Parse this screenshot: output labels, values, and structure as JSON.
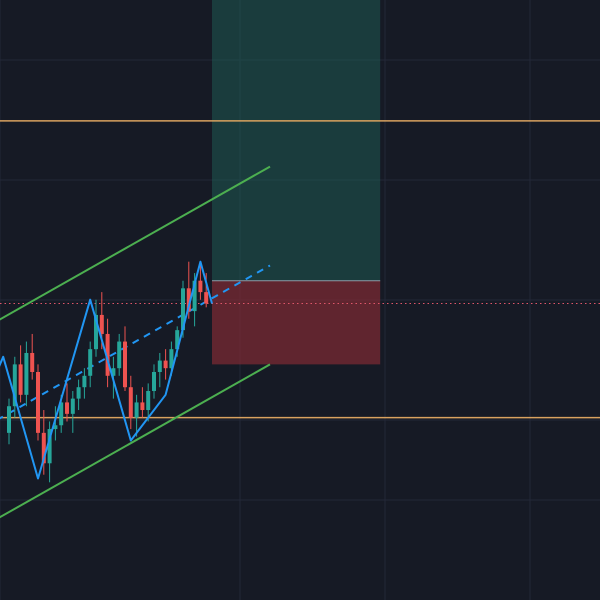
{
  "chart_data": {
    "type": "candlestick",
    "title": "",
    "xlabel": "",
    "ylabel": "",
    "grid": true,
    "price_scale_visible": false,
    "time_scale_visible": false,
    "colors": {
      "background": "#161a25",
      "grid": "#232838",
      "up_candle": "#26a69a",
      "down_candle": "#ef5350",
      "channel": "#4caf50",
      "zigzag": "#2196f3",
      "horizontal_levels": "#d9a25f",
      "current_price_line": "#e0566a",
      "target_zone": "#1f5a52",
      "stop_zone": "#7a2a33"
    },
    "ylim": [
      0,
      100
    ],
    "candles": [
      {
        "o": 43.0,
        "h": 47.5,
        "l": 41.5,
        "c": 46.5
      },
      {
        "o": 46.5,
        "h": 53.0,
        "l": 45.0,
        "c": 52.0
      },
      {
        "o": 52.0,
        "h": 54.5,
        "l": 47.0,
        "c": 48.0
      },
      {
        "o": 48.0,
        "h": 55.0,
        "l": 46.5,
        "c": 53.5
      },
      {
        "o": 53.5,
        "h": 56.0,
        "l": 50.0,
        "c": 51.0
      },
      {
        "o": 51.0,
        "h": 52.0,
        "l": 42.0,
        "c": 43.0
      },
      {
        "o": 43.0,
        "h": 46.0,
        "l": 37.5,
        "c": 39.0
      },
      {
        "o": 39.0,
        "h": 44.5,
        "l": 36.5,
        "c": 43.5
      },
      {
        "o": 43.5,
        "h": 46.5,
        "l": 42.0,
        "c": 44.0
      },
      {
        "o": 44.0,
        "h": 48.0,
        "l": 43.0,
        "c": 47.0
      },
      {
        "o": 47.0,
        "h": 49.5,
        "l": 44.5,
        "c": 45.5
      },
      {
        "o": 45.5,
        "h": 48.5,
        "l": 43.0,
        "c": 47.5
      },
      {
        "o": 47.5,
        "h": 50.0,
        "l": 46.0,
        "c": 49.0
      },
      {
        "o": 49.0,
        "h": 51.5,
        "l": 47.5,
        "c": 50.5
      },
      {
        "o": 50.5,
        "h": 55.0,
        "l": 49.0,
        "c": 54.0
      },
      {
        "o": 54.0,
        "h": 60.5,
        "l": 53.0,
        "c": 58.5
      },
      {
        "o": 58.5,
        "h": 61.5,
        "l": 54.0,
        "c": 56.0
      },
      {
        "o": 56.0,
        "h": 58.0,
        "l": 49.0,
        "c": 50.5
      },
      {
        "o": 50.5,
        "h": 53.0,
        "l": 47.5,
        "c": 51.5
      },
      {
        "o": 51.5,
        "h": 56.0,
        "l": 50.5,
        "c": 55.0
      },
      {
        "o": 55.0,
        "h": 57.0,
        "l": 48.5,
        "c": 49.0
      },
      {
        "o": 49.0,
        "h": 50.5,
        "l": 43.5,
        "c": 45.0
      },
      {
        "o": 45.0,
        "h": 48.0,
        "l": 42.5,
        "c": 47.0
      },
      {
        "o": 47.0,
        "h": 49.0,
        "l": 45.0,
        "c": 46.0
      },
      {
        "o": 46.0,
        "h": 49.5,
        "l": 44.5,
        "c": 48.5
      },
      {
        "o": 48.5,
        "h": 52.0,
        "l": 47.5,
        "c": 51.0
      },
      {
        "o": 51.0,
        "h": 53.5,
        "l": 49.0,
        "c": 52.5
      },
      {
        "o": 52.5,
        "h": 54.0,
        "l": 50.0,
        "c": 51.5
      },
      {
        "o": 51.5,
        "h": 55.0,
        "l": 50.5,
        "c": 54.0
      },
      {
        "o": 54.0,
        "h": 57.0,
        "l": 53.0,
        "c": 56.5
      },
      {
        "o": 56.5,
        "h": 63.0,
        "l": 55.5,
        "c": 62.0
      },
      {
        "o": 62.0,
        "h": 65.5,
        "l": 58.0,
        "c": 59.0
      },
      {
        "o": 59.0,
        "h": 64.0,
        "l": 57.0,
        "c": 63.0
      },
      {
        "o": 63.0,
        "h": 65.5,
        "l": 60.5,
        "c": 61.5
      },
      {
        "o": 61.5,
        "h": 64.0,
        "l": 59.5,
        "c": 60.0
      }
    ],
    "channel": {
      "upper": {
        "from": [
          -6,
          56
        ],
        "to": [
          45,
          78
        ]
      },
      "lower": {
        "from": [
          -6,
          30
        ],
        "to": [
          45,
          52
        ]
      },
      "midline": {
        "from": [
          -6,
          43
        ],
        "to": [
          45,
          65
        ]
      }
    },
    "zigzag": [
      [
        -6,
        44
      ],
      [
        -1,
        53
      ],
      [
        5,
        37
      ],
      [
        14,
        60.5
      ],
      [
        21,
        42
      ],
      [
        27,
        48
      ],
      [
        33,
        65.5
      ],
      [
        35,
        60
      ]
    ],
    "horizontal_levels": [
      84,
      45
    ],
    "current_price": 60,
    "position": {
      "start_index": 35,
      "end_index": 64,
      "entry": 63,
      "target": 100,
      "stop": 52
    }
  }
}
